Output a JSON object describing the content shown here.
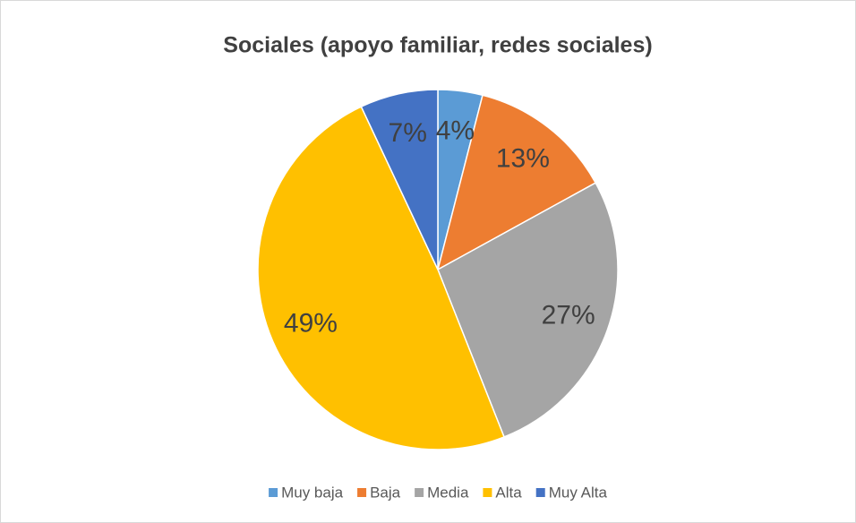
{
  "chart_data": {
    "type": "pie",
    "title": "Sociales (apoyo familiar, redes sociales)",
    "categories": [
      "Muy baja",
      "Baja",
      "Media",
      "Alta",
      "Muy Alta"
    ],
    "values": [
      4,
      13,
      27,
      49,
      7
    ],
    "value_labels": [
      "4%",
      "13%",
      "27%",
      "49%",
      "7%"
    ],
    "colors": [
      "#5b9bd5",
      "#ed7d31",
      "#a5a5a5",
      "#ffc000",
      "#4472c4"
    ],
    "legend": "bottom"
  }
}
